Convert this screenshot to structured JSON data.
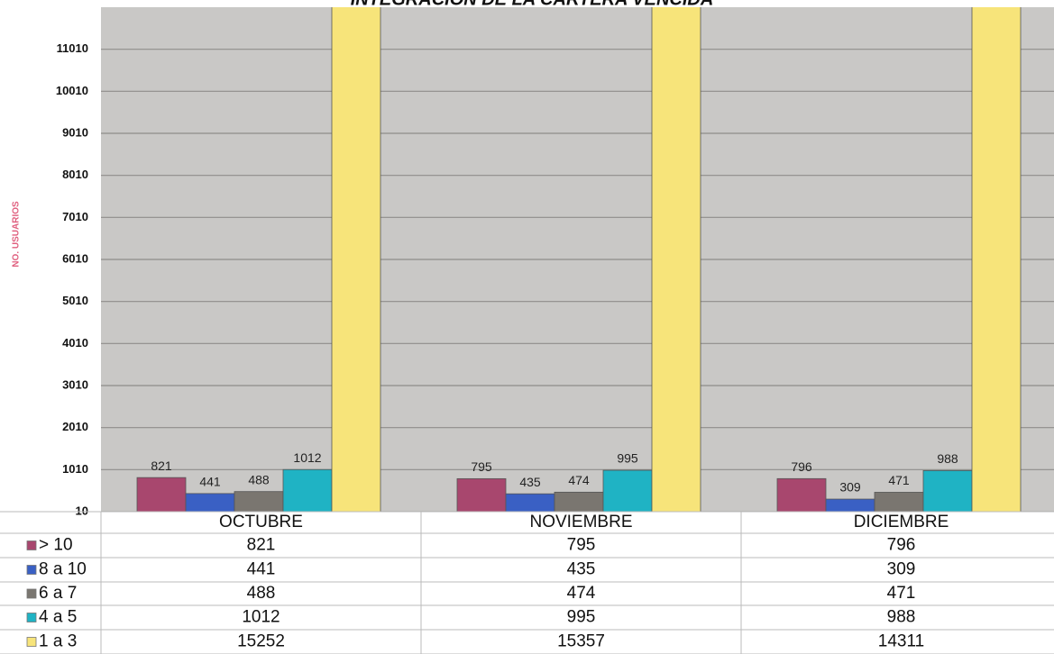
{
  "chart_data": {
    "type": "bar",
    "title": "INTEGRACION DE LA CARTERA VENCIDA",
    "y_label": "NO. USUARIOS",
    "categories": [
      "OCTUBRE",
      "NOVIEMBRE",
      "DICIEMBRE"
    ],
    "series": [
      {
        "name": "> 10",
        "color": "#a8476e",
        "values": [
          821,
          795,
          796
        ]
      },
      {
        "name": "8 a 10",
        "color": "#3a60c4",
        "values": [
          441,
          435,
          309
        ]
      },
      {
        "name": "6 a 7",
        "color": "#7a7670",
        "values": [
          488,
          474,
          471
        ]
      },
      {
        "name": "4 a 5",
        "color": "#1fb3c4",
        "values": [
          1012,
          995,
          988
        ]
      },
      {
        "name": "1 a 3",
        "color": "#f7e47a",
        "values": [
          15252,
          15357,
          14311
        ]
      }
    ],
    "ylim": [
      10,
      12010
    ],
    "yticks": [
      10,
      1010,
      2010,
      3010,
      4010,
      5010,
      6010,
      7010,
      8010,
      9010,
      10010,
      11010
    ],
    "grid": true
  }
}
